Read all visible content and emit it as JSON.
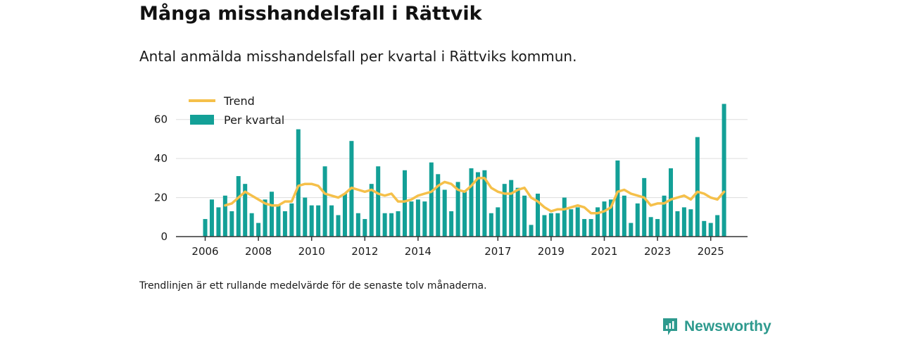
{
  "chart_data": {
    "type": "bar",
    "title": "Många misshandelsfall i Rättvik",
    "subtitle": "Antal anmälda misshandelsfall per kvartal i Rättviks kommun.",
    "xlabel": "",
    "ylabel": "",
    "ylim": [
      0,
      70
    ],
    "y_ticks": [
      0,
      20,
      40,
      60
    ],
    "x_ticks": [
      {
        "label": "2006",
        "year": 2006
      },
      {
        "label": "2008",
        "year": 2008
      },
      {
        "label": "2010",
        "year": 2010
      },
      {
        "label": "2012",
        "year": 2012
      },
      {
        "label": "2014",
        "year": 2014
      },
      {
        "label": "2017",
        "year": 2017
      },
      {
        "label": "2019",
        "year": 2019
      },
      {
        "label": "2021",
        "year": 2021
      },
      {
        "label": "2023",
        "year": 2023
      },
      {
        "label": "2025",
        "year": 2025
      }
    ],
    "start_year": 2006,
    "legend": [
      "Trend",
      "Per kvartal"
    ],
    "colors": {
      "bar": "#13a097",
      "trend": "#f5c04a",
      "axis": "#333333",
      "grid": "#dddddd"
    },
    "series": [
      {
        "name": "Per kvartal",
        "values": [
          9,
          19,
          15,
          21,
          13,
          31,
          27,
          12,
          7,
          19,
          23,
          16,
          13,
          17,
          55,
          20,
          16,
          16,
          36,
          16,
          11,
          22,
          49,
          12,
          9,
          27,
          36,
          12,
          12,
          13,
          34,
          18,
          19,
          18,
          38,
          32,
          24,
          13,
          28,
          23,
          35,
          33,
          34,
          12,
          15,
          27,
          29,
          25,
          21,
          6,
          22,
          11,
          12,
          12,
          20,
          14,
          15,
          9,
          9,
          15,
          18,
          19,
          39,
          21,
          7,
          17,
          30,
          10,
          9,
          21,
          35,
          13,
          15,
          14,
          51,
          8,
          7,
          11,
          68
        ]
      },
      {
        "name": "Trend",
        "values": [
          null,
          null,
          null,
          16,
          17,
          20,
          23,
          21,
          19,
          17,
          16,
          16,
          18,
          18,
          26,
          27,
          27,
          26,
          22,
          21,
          20,
          22,
          25,
          24,
          23,
          24,
          22,
          21,
          22,
          18,
          18,
          19,
          21,
          22,
          23,
          26,
          28,
          27,
          24,
          23,
          26,
          30,
          30,
          25,
          23,
          22,
          22,
          24,
          25,
          20,
          18,
          15,
          13,
          14,
          14,
          15,
          16,
          15,
          12,
          12,
          13,
          15,
          23,
          24,
          22,
          21,
          20,
          16,
          17,
          17,
          19,
          20,
          21,
          19,
          23,
          22,
          20,
          19,
          23
        ]
      }
    ]
  },
  "footnote": "Trendlinjen är ett rullande medelvärde för de senaste tolv månaderna.",
  "brand": {
    "name": "Newsworthy"
  }
}
